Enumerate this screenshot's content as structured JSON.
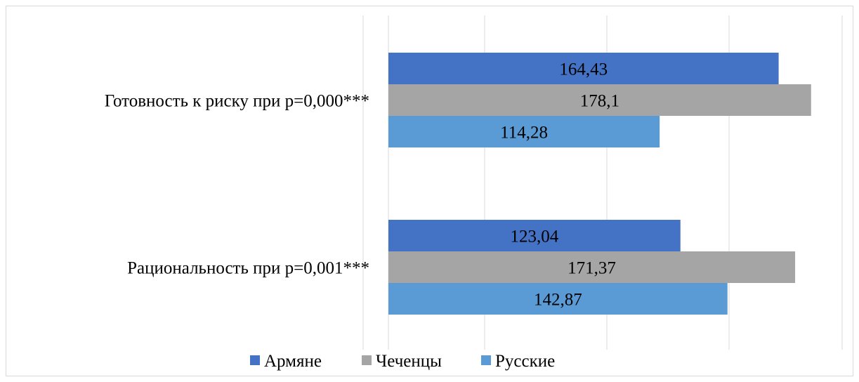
{
  "chart_data": {
    "type": "bar",
    "orientation": "horizontal",
    "categories": [
      "Готовность к риску при p=0,000***",
      "Рациональность  при p=0,001***"
    ],
    "series": [
      {
        "name": "Армяне",
        "values": [
          164.43,
          123.04
        ],
        "labels": [
          "164,43",
          "123,04"
        ],
        "color": "#4472c4"
      },
      {
        "name": "Чеченцы",
        "values": [
          178.1,
          171.37
        ],
        "labels": [
          "178,1",
          "171,37"
        ],
        "color": "#a5a5a5"
      },
      {
        "name": "Русские",
        "values": [
          114.28,
          142.87
        ],
        "labels": [
          "114,28",
          "142,87"
        ],
        "color": "#5b9bd5"
      }
    ],
    "xlim": [
      0,
      190
    ],
    "grid": true,
    "legend": "bottom",
    "title": "",
    "xlabel": "",
    "ylabel": "",
    "colors": {
      "grid": "#d9d9d9",
      "border": "#d9d9d9"
    }
  }
}
